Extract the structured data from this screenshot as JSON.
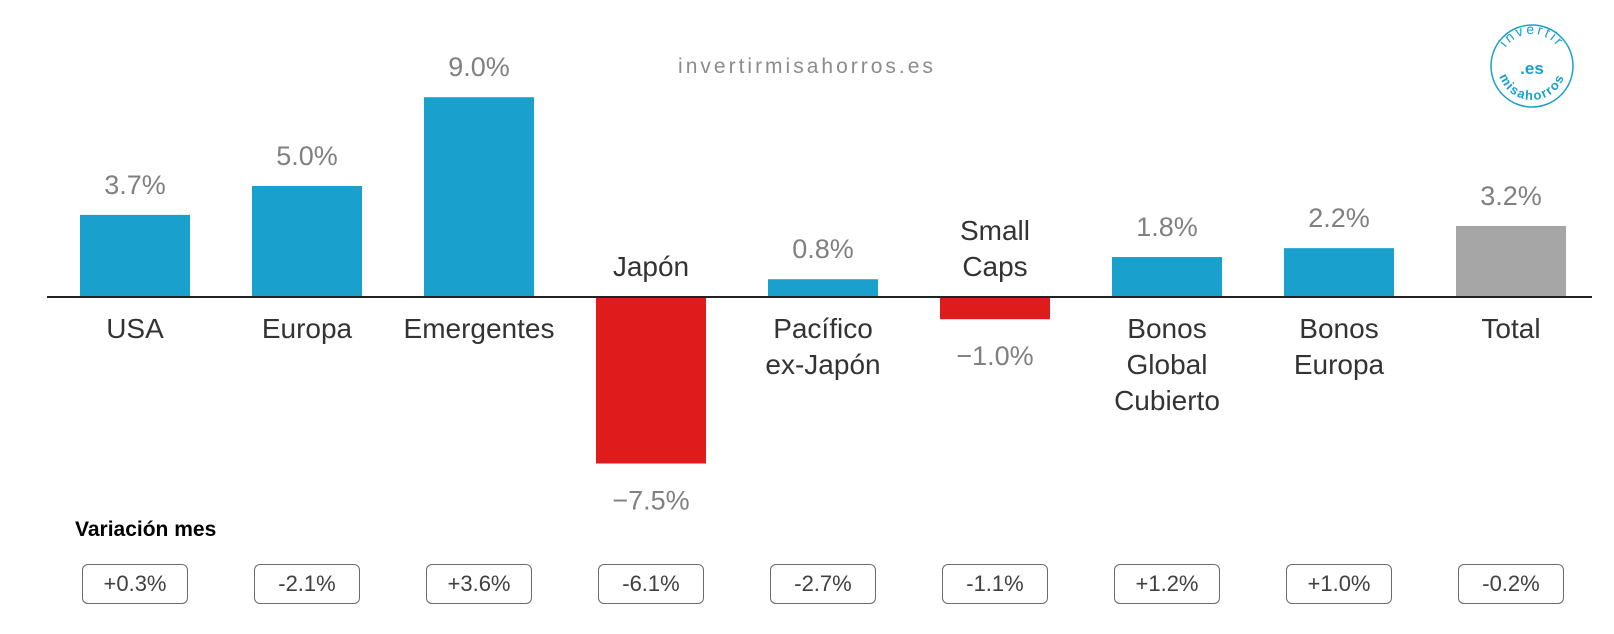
{
  "watermark": "invertirmisahorros.es",
  "logo": {
    "top_text": "invertir",
    "center_text": ".es",
    "bottom_text": "misahorros",
    "color": "#1aa0cc"
  },
  "colors": {
    "positive": "#1aa0cc",
    "negative": "#e01b1b",
    "total": "#a6a6a6",
    "value_label": "#808080",
    "category_label": "#333333"
  },
  "chart_data": {
    "type": "bar",
    "categories": [
      [
        "USA"
      ],
      [
        "Europa"
      ],
      [
        "Emergentes"
      ],
      [
        "Japón"
      ],
      [
        "Pacífico",
        "ex-Japón"
      ],
      [
        "Small",
        "Caps"
      ],
      [
        "Bonos",
        "Global",
        "Cubierto"
      ],
      [
        "Bonos",
        "Europa"
      ],
      [
        "Total"
      ]
    ],
    "values": [
      3.7,
      5.0,
      9.0,
      -7.5,
      0.8,
      -1.0,
      1.8,
      2.2,
      3.2
    ],
    "value_labels": [
      "3.7%",
      "5.0%",
      "9.0%",
      "−7.5%",
      "0.8%",
      "−1.0%",
      "1.8%",
      "2.2%",
      "3.2%"
    ],
    "bar_colors": [
      "#1aa0cc",
      "#1aa0cc",
      "#1aa0cc",
      "#e01b1b",
      "#1aa0cc",
      "#e01b1b",
      "#1aa0cc",
      "#1aa0cc",
      "#a6a6a6"
    ],
    "ylim": [
      -7.5,
      9.0
    ],
    "grid": false,
    "title": "",
    "xlabel": "",
    "ylabel": ""
  },
  "monthly_variation": {
    "title": "Variación mes",
    "values": [
      "+0.3%",
      "-2.1%",
      "+3.6%",
      "-6.1%",
      "-2.7%",
      "-1.1%",
      "+1.2%",
      "+1.0%",
      "-0.2%"
    ]
  }
}
